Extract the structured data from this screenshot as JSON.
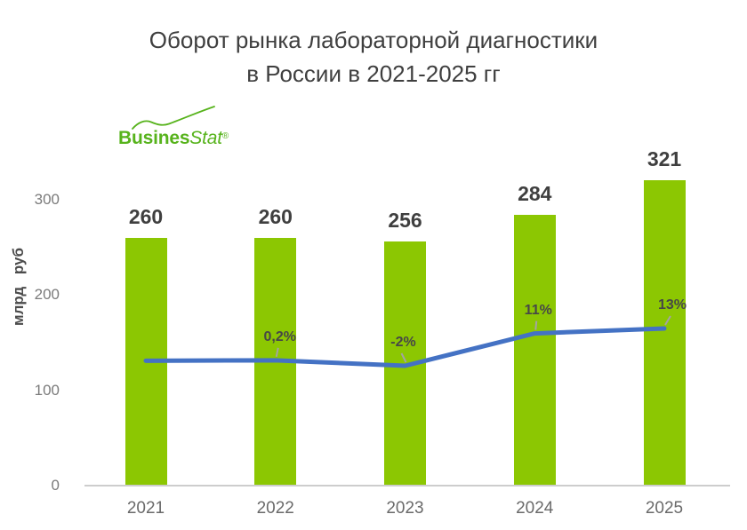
{
  "title": {
    "line1": "Оборот рынка лабораторной диагностики",
    "line2": "в России в 2021-2025 гг"
  },
  "logo": {
    "bold": "Busines",
    "light": "Stat",
    "registered": "®"
  },
  "colors": {
    "bar_green": "#8cc702",
    "line_blue": "#4472c4",
    "logo_green": "#57b31c",
    "title_ink": "#3f3f3f",
    "tick_gray": "#7b7b7b",
    "axis_gray": "#cdcdcd"
  },
  "chart_data": {
    "type": "bar+line",
    "title": "Оборот рынка лабораторной диагностики в России в 2021-2025 гг",
    "categories": [
      "2021",
      "2022",
      "2023",
      "2024",
      "2025"
    ],
    "xlabel": "",
    "ylabel": "млрд руб",
    "y_ticks": [
      0,
      100,
      200,
      300
    ],
    "ylim": [
      0,
      342
    ],
    "grid": false,
    "legend": false,
    "series": [
      {
        "type": "bar",
        "values": [
          260,
          260,
          256,
          284,
          321
        ],
        "data_labels": [
          "260",
          "260",
          "256",
          "284",
          "321"
        ],
        "color": "#8cc702"
      },
      {
        "type": "line",
        "secondary_axis": true,
        "values": [
          0,
          0.2,
          -2,
          11,
          13
        ],
        "data_labels": [
          "",
          "0,2%",
          "-2%",
          "11%",
          "13%"
        ],
        "color": "#4472c4"
      }
    ]
  }
}
